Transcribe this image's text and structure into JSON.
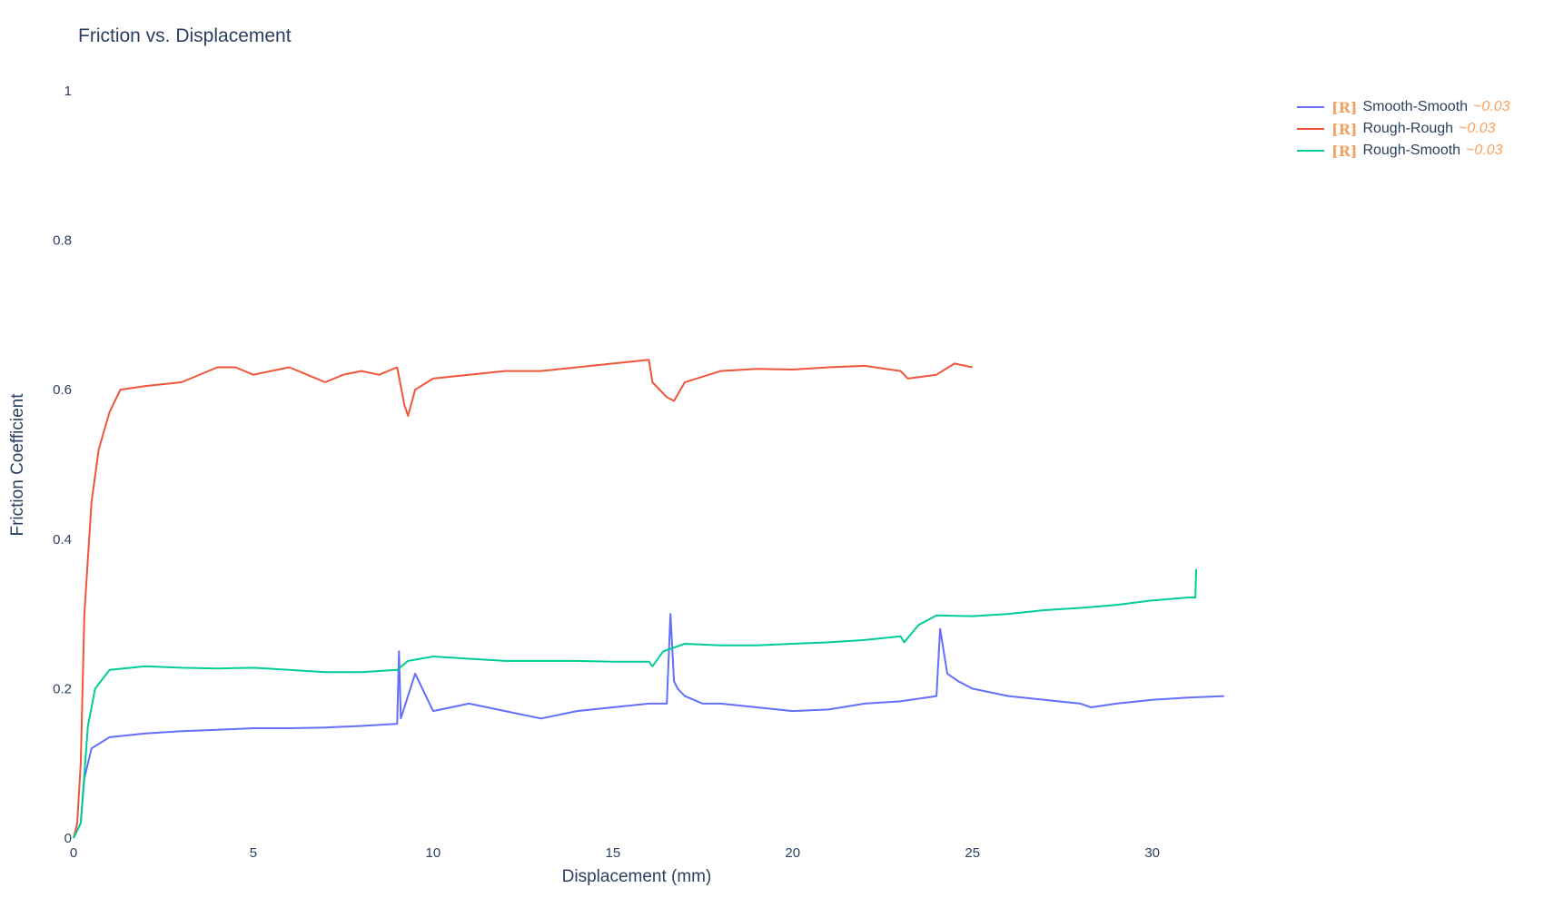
{
  "chart_data": {
    "type": "line",
    "title": "Friction vs. Displacement",
    "xlabel": "Displacement (mm)",
    "ylabel": "Friction Coefficient",
    "xlim": [
      0,
      36.5
    ],
    "ylim": [
      0,
      1
    ],
    "xticks": [
      0,
      5,
      10,
      15,
      20,
      25,
      30
    ],
    "yticks": [
      0,
      0.2,
      0.4,
      0.6,
      0.8,
      1
    ],
    "ytick_labels": [
      "0",
      "0.2",
      "0.4",
      "0.6",
      "0.8",
      "1"
    ],
    "grid": false,
    "legend_position": "top-right",
    "series": [
      {
        "name": "Smooth-Smooth",
        "tag": "[R]",
        "note": "~0.03",
        "color": "#636efa",
        "x": [
          0,
          0.2,
          0.3,
          0.5,
          1,
          2,
          3,
          4,
          5,
          6,
          7,
          8,
          9,
          9.05,
          9.1,
          9.5,
          10,
          11,
          12,
          13,
          14,
          15,
          16,
          16.5,
          16.6,
          16.7,
          16.8,
          17,
          17.5,
          18,
          19,
          20,
          21,
          22,
          23,
          24,
          24.1,
          24.3,
          24.6,
          25,
          26,
          27,
          28,
          28.3,
          29,
          30,
          31,
          32
        ],
        "y": [
          0,
          0.02,
          0.08,
          0.12,
          0.135,
          0.14,
          0.143,
          0.145,
          0.147,
          0.147,
          0.148,
          0.15,
          0.153,
          0.25,
          0.16,
          0.22,
          0.17,
          0.18,
          0.17,
          0.16,
          0.17,
          0.175,
          0.18,
          0.18,
          0.3,
          0.21,
          0.2,
          0.19,
          0.18,
          0.18,
          0.175,
          0.17,
          0.172,
          0.18,
          0.183,
          0.19,
          0.28,
          0.22,
          0.21,
          0.2,
          0.19,
          0.185,
          0.18,
          0.175,
          0.18,
          0.185,
          0.188,
          0.19
        ]
      },
      {
        "name": "Rough-Rough",
        "tag": "[R]",
        "note": "~0.03",
        "color": "#ef553b",
        "x": [
          0,
          0.1,
          0.2,
          0.3,
          0.5,
          0.7,
          1,
          1.3,
          2,
          3,
          4,
          4.5,
          5,
          5.5,
          6,
          6.5,
          7,
          7.5,
          8,
          8.5,
          9,
          9.2,
          9.3,
          9.5,
          10,
          11,
          12,
          13,
          14,
          15,
          16,
          16.1,
          16.5,
          16.7,
          17,
          18,
          19,
          20,
          21,
          22,
          23,
          23.2,
          24,
          24.5,
          25
        ],
        "y": [
          0,
          0.02,
          0.1,
          0.3,
          0.45,
          0.52,
          0.57,
          0.6,
          0.605,
          0.61,
          0.63,
          0.63,
          0.62,
          0.625,
          0.63,
          0.62,
          0.61,
          0.62,
          0.625,
          0.62,
          0.63,
          0.58,
          0.565,
          0.6,
          0.615,
          0.62,
          0.625,
          0.625,
          0.63,
          0.635,
          0.64,
          0.61,
          0.59,
          0.585,
          0.61,
          0.625,
          0.628,
          0.627,
          0.63,
          0.632,
          0.625,
          0.615,
          0.62,
          0.635,
          0.63
        ]
      },
      {
        "name": "Rough-Smooth",
        "tag": "[R]",
        "note": "~0.03",
        "color": "#00cc96",
        "x": [
          0,
          0.2,
          0.4,
          0.6,
          1,
          2,
          3,
          4,
          5,
          6,
          7,
          8,
          9,
          9.3,
          10,
          11,
          12,
          13,
          14,
          15,
          16,
          16.1,
          16.4,
          17,
          18,
          19,
          20,
          21,
          22,
          23,
          23.1,
          23.5,
          24,
          25,
          26,
          27,
          28,
          29,
          30,
          31,
          31.2,
          31.22
        ],
        "y": [
          0,
          0.02,
          0.15,
          0.2,
          0.225,
          0.23,
          0.228,
          0.227,
          0.228,
          0.225,
          0.222,
          0.222,
          0.225,
          0.237,
          0.243,
          0.24,
          0.237,
          0.237,
          0.237,
          0.236,
          0.236,
          0.23,
          0.25,
          0.26,
          0.258,
          0.258,
          0.26,
          0.262,
          0.265,
          0.27,
          0.262,
          0.285,
          0.298,
          0.297,
          0.3,
          0.305,
          0.308,
          0.312,
          0.318,
          0.322,
          0.322,
          0.36
        ]
      }
    ]
  }
}
